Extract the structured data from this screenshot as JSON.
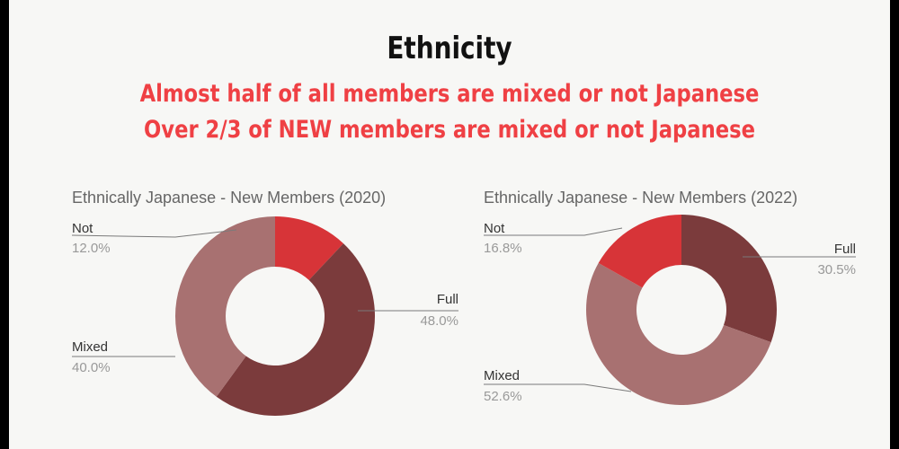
{
  "slide": {
    "title": "Ethnicity",
    "subtitle_lines": [
      "Almost half of all members are mixed or not Japanese",
      "Over 2/3 of NEW members are mixed or not Japanese"
    ]
  },
  "colors": {
    "Full": "#7b3b3c",
    "Mixed": "#a87171",
    "Not": "#d73438",
    "headline": "#ef4044"
  },
  "chart_data": [
    {
      "type": "pie",
      "title": "Ethnically Japanese - New Members (2020)",
      "categories": [
        "Full",
        "Mixed",
        "Not"
      ],
      "values": [
        48.0,
        40.0,
        12.0
      ],
      "labels": [
        "48.0%",
        "40.0%",
        "12.0%"
      ]
    },
    {
      "type": "pie",
      "title": "Ethnically Japanese - New Members (2022)",
      "categories": [
        "Full",
        "Mixed",
        "Not"
      ],
      "values": [
        30.5,
        52.6,
        16.8
      ],
      "labels": [
        "30.5%",
        "52.6%",
        "16.8%"
      ]
    }
  ]
}
